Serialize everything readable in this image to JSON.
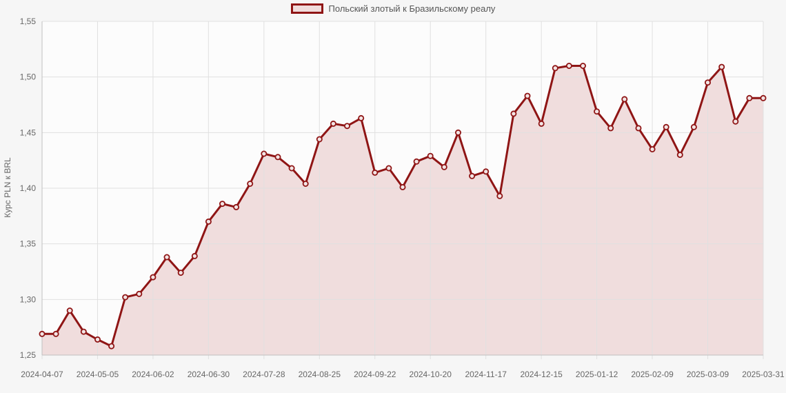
{
  "chart_data": {
    "type": "area",
    "title": "",
    "legend_label": "Польский злотый к Бразильскому реалу",
    "ylabel": "Курс PLN к BRL",
    "ylim": [
      1.25,
      1.55
    ],
    "ytick_step": 0.05,
    "decimal_separator": ",",
    "grid": true,
    "legend_position": "top-center",
    "x_labels": [
      "2024-04-07",
      "2024-05-05",
      "2024-06-02",
      "2024-06-30",
      "2024-07-28",
      "2024-08-25",
      "2024-09-22",
      "2024-10-20",
      "2024-11-17",
      "2024-12-15",
      "2025-01-12",
      "2025-02-09",
      "2025-03-09",
      "2025-03-31"
    ],
    "x_label_indices": [
      0,
      4,
      8,
      12,
      16,
      20,
      24,
      28,
      32,
      36,
      40,
      44,
      48,
      52
    ],
    "dates": [
      "2024-04-07",
      "2024-04-14",
      "2024-04-21",
      "2024-04-28",
      "2024-05-05",
      "2024-05-12",
      "2024-05-19",
      "2024-05-26",
      "2024-06-02",
      "2024-06-09",
      "2024-06-16",
      "2024-06-23",
      "2024-06-30",
      "2024-07-07",
      "2024-07-14",
      "2024-07-21",
      "2024-07-28",
      "2024-08-04",
      "2024-08-11",
      "2024-08-18",
      "2024-08-25",
      "2024-09-01",
      "2024-09-08",
      "2024-09-15",
      "2024-09-22",
      "2024-09-29",
      "2024-10-06",
      "2024-10-13",
      "2024-10-20",
      "2024-10-27",
      "2024-11-03",
      "2024-11-10",
      "2024-11-17",
      "2024-11-24",
      "2024-12-01",
      "2024-12-08",
      "2024-12-15",
      "2024-12-22",
      "2024-12-29",
      "2025-01-05",
      "2025-01-12",
      "2025-01-19",
      "2025-01-26",
      "2025-02-02",
      "2025-02-09",
      "2025-02-16",
      "2025-02-23",
      "2025-03-02",
      "2025-03-09",
      "2025-03-16",
      "2025-03-23",
      "2025-03-30",
      "2025-03-31"
    ],
    "values": [
      1.269,
      1.269,
      1.29,
      1.271,
      1.264,
      1.258,
      1.302,
      1.305,
      1.32,
      1.338,
      1.324,
      1.339,
      1.37,
      1.386,
      1.383,
      1.404,
      1.431,
      1.428,
      1.418,
      1.404,
      1.444,
      1.458,
      1.456,
      1.463,
      1.414,
      1.418,
      1.401,
      1.424,
      1.429,
      1.419,
      1.45,
      1.411,
      1.415,
      1.393,
      1.467,
      1.483,
      1.458,
      1.508,
      1.51,
      1.51,
      1.469,
      1.454,
      1.48,
      1.454,
      1.435,
      1.455,
      1.43,
      1.455,
      1.495,
      1.509,
      1.46,
      1.481,
      1.481
    ],
    "colors": {
      "line": "#8f1515",
      "fill": "#f0dddd",
      "marker_fill": "#f2e4e4",
      "grid": "#e0e0e0",
      "axis": "#c0c0c0",
      "text": "#666666",
      "plot_bg": "#fcfcfc",
      "page_bg": "#f6f6f6"
    }
  }
}
